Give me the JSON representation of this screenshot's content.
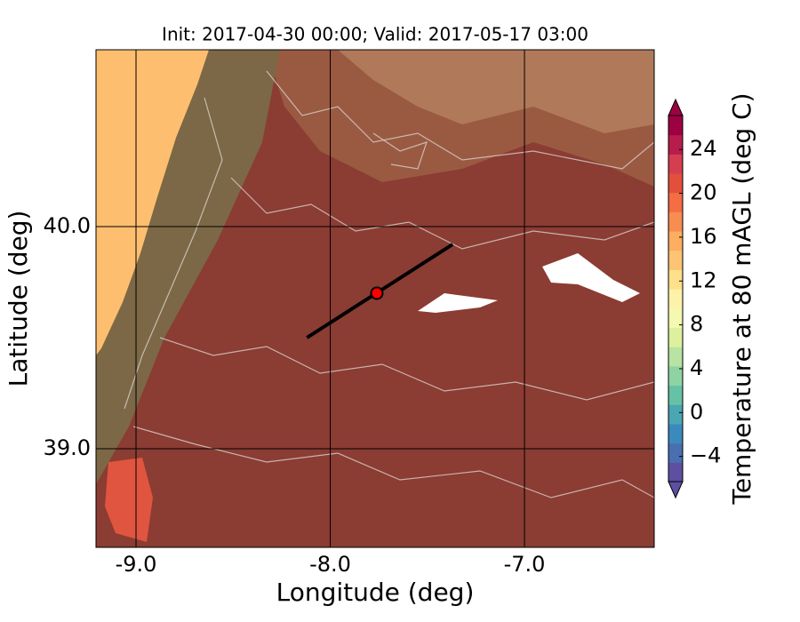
{
  "chart_data": {
    "type": "map",
    "title": "Init: 2017-04-30 00:00; Valid: 2017-05-17 03:00",
    "x_label": "Longitude (deg)",
    "y_label": "Latitude (deg)",
    "xlim": [
      -9.206,
      -6.332
    ],
    "ylim": [
      38.556,
      40.796
    ],
    "xticks": [
      {
        "value": -9,
        "label": "-9.0"
      },
      {
        "value": -8,
        "label": "-8.0"
      },
      {
        "value": -7,
        "label": "-7.0"
      }
    ],
    "yticks": [
      {
        "value": 39,
        "label": "39.0"
      },
      {
        "value": 40,
        "label": "40.0"
      }
    ],
    "grid": true,
    "transect": {
      "start": [
        -8.12,
        39.5
      ],
      "end": [
        -7.37,
        39.92
      ],
      "color": "#000000"
    },
    "point": {
      "lon": -7.76,
      "lat": 39.7,
      "color": "#ff0000"
    },
    "colorbar": {
      "label": "Temperature at 80 mAGL (deg C)",
      "clim": [
        -6.3,
        27.1
      ],
      "ticks": [
        {
          "value": -4,
          "label": "−4"
        },
        0,
        4,
        8,
        12,
        16,
        20,
        24
      ],
      "colors": [
        "#5e4fa2",
        "#4a6fb0",
        "#3b8abd",
        "#4aa6b3",
        "#66c2a5",
        "#8fd3a4",
        "#b8e3a2",
        "#dcf09e",
        "#f4f8b0",
        "#fdf2a9",
        "#fee08b",
        "#fdc474",
        "#fdae61",
        "#f88d52",
        "#f46d43",
        "#e34f3c",
        "#d53e4f",
        "#b81c4c",
        "#9e0142"
      ]
    }
  }
}
